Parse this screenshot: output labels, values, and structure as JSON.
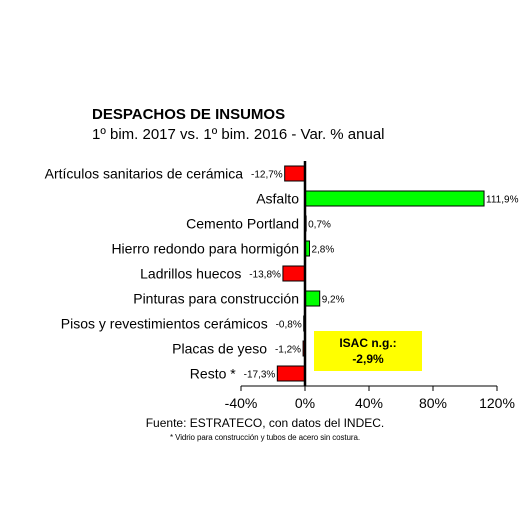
{
  "chart_data": {
    "type": "bar",
    "orientation": "horizontal",
    "title": "DESPACHOS DE INSUMOS",
    "subtitle": "1º bim. 2017 vs. 1º bim. 2016 - Var. % anual",
    "categories": [
      "Artículos sanitarios de cerámica",
      "Asfalto",
      "Cemento Portland",
      "Hierro redondo para hormigón",
      "Ladrillos huecos",
      "Pinturas para construcción",
      "Pisos y revestimientos cerámicos",
      "Placas de yeso",
      "Resto *"
    ],
    "values": [
      -12.7,
      111.9,
      0.7,
      2.8,
      -13.8,
      9.2,
      -0.8,
      -1.2,
      -17.3
    ],
    "value_labels": [
      "-12,7%",
      "111,9%",
      "0,7%",
      "2,8%",
      "-13,8%",
      "9,2%",
      "-0,8%",
      "-1,2%",
      "-17,3%"
    ],
    "xlim": [
      -40,
      120
    ],
    "xticks": [
      -40,
      0,
      40,
      80,
      120
    ],
    "xtick_labels": [
      "-40%",
      "0%",
      "40%",
      "80%",
      "120%"
    ],
    "colors": {
      "positive": "#00ff00",
      "negative": "#ff0000",
      "outline": "#000000"
    },
    "grid": false,
    "annotation": {
      "line1": "ISAC n.g.:",
      "line2": "-2,9%",
      "background": "#ffff00"
    }
  },
  "source": "Fuente: ESTRATECO, con datos del INDEC.",
  "footnote": "* Vidrio para construcción y tubos de acero sin costura."
}
